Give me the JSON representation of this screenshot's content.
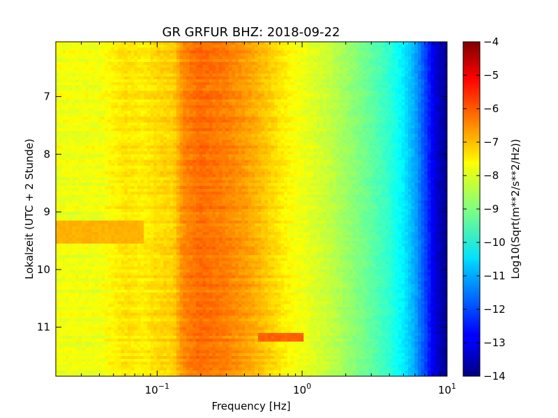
{
  "chart_data": {
    "type": "heatmap",
    "title": "GR GRFUR BHZ: 2018-09-22",
    "xlabel": "Frequency [Hz]",
    "ylabel": "Lokalzeit (UTC + 2 Stunde)",
    "x_scale": "log",
    "xlim": [
      0.02,
      10
    ],
    "ylim": [
      11.85,
      6.05
    ],
    "y_inverted": true,
    "x_ticks": [
      {
        "value": 0.1,
        "base": "10",
        "exp": "−1"
      },
      {
        "value": 1,
        "base": "10",
        "exp": "0"
      },
      {
        "value": 10,
        "base": "10",
        "exp": "1"
      }
    ],
    "y_ticks": [
      {
        "value": 7,
        "label": "7"
      },
      {
        "value": 8,
        "label": "8"
      },
      {
        "value": 9,
        "label": "9"
      },
      {
        "value": 10,
        "label": "10"
      },
      {
        "value": 11,
        "label": "11"
      }
    ],
    "colorbar": {
      "label": "Log10(Sqrt(m**2/s**2/Hz))",
      "range": [
        -14,
        -4
      ],
      "colormap": "jet",
      "ticks": [
        {
          "value": -4,
          "label": "−4"
        },
        {
          "value": -5,
          "label": "−5"
        },
        {
          "value": -6,
          "label": "−6"
        },
        {
          "value": -7,
          "label": "−7"
        },
        {
          "value": -8,
          "label": "−8"
        },
        {
          "value": -9,
          "label": "−9"
        },
        {
          "value": -10,
          "label": "−10"
        },
        {
          "value": -11,
          "label": "−11"
        },
        {
          "value": -12,
          "label": "−12"
        },
        {
          "value": -13,
          "label": "−13"
        },
        {
          "value": -14,
          "label": "−14"
        }
      ]
    },
    "spectrum_profile": {
      "frequency": [
        0.02,
        0.04,
        0.06,
        0.08,
        0.1,
        0.13,
        0.15,
        0.2,
        0.3,
        0.45,
        0.6,
        0.8,
        1.0,
        1.5,
        2.0,
        3.0,
        4.0,
        5.0,
        6.0,
        7.0,
        8.0,
        9.0,
        10.0
      ],
      "log_amplitude": [
        -7.9,
        -7.9,
        -7.5,
        -7.6,
        -7.4,
        -7.3,
        -6.6,
        -6.3,
        -6.5,
        -6.9,
        -7.3,
        -7.7,
        -7.9,
        -8.3,
        -8.7,
        -9.3,
        -9.8,
        -10.4,
        -11.1,
        -12.0,
        -12.9,
        -13.5,
        -13.8
      ]
    },
    "features": [
      {
        "frequency": [
          0.02,
          0.08
        ],
        "time": [
          9.15,
          9.55
        ],
        "log_amplitude": -7.0
      },
      {
        "frequency": [
          0.5,
          1.0
        ],
        "time": [
          11.1,
          11.25
        ],
        "log_amplitude": -6.2
      }
    ]
  }
}
